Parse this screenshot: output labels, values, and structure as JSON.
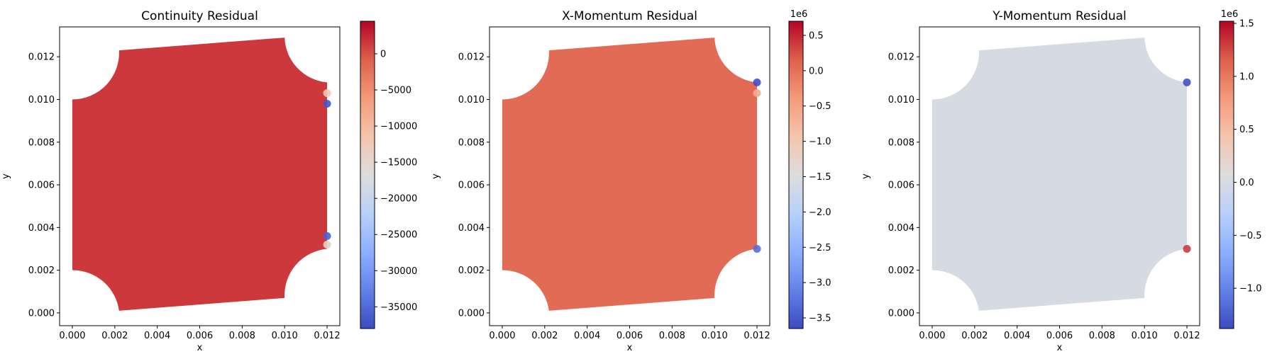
{
  "chart_data": [
    {
      "type": "scatter",
      "title": "Continuity Residual",
      "xlabel": "x",
      "ylabel": "y",
      "xlim": [
        -0.0006,
        0.0126
      ],
      "ylim": [
        -0.0006,
        0.0134
      ],
      "xticks": [
        0.0,
        0.002,
        0.004,
        0.006,
        0.008,
        0.01,
        0.012
      ],
      "xtick_labels": [
        "0.000",
        "0.002",
        "0.004",
        "0.006",
        "0.008",
        "0.010",
        "0.012"
      ],
      "yticks": [
        0.0,
        0.002,
        0.004,
        0.006,
        0.008,
        0.01,
        0.012
      ],
      "ytick_labels": [
        "0.000",
        "0.002",
        "0.004",
        "0.006",
        "0.008",
        "0.010",
        "0.012"
      ],
      "grid": false,
      "colormap": "coolwarm",
      "colorbar": {
        "range": [
          -38000,
          4500
        ],
        "offset_label": "",
        "ticks": [
          0,
          -5000,
          -10000,
          -15000,
          -20000,
          -25000,
          -30000,
          -35000
        ],
        "tick_labels": [
          "0",
          "−5000",
          "−10000",
          "−15000",
          "−20000",
          "−25000",
          "−30000",
          "−35000"
        ]
      },
      "background_value": 1500,
      "domain_shape": {
        "corners": [
          [
            0.0,
            0.01
          ],
          [
            0.0022,
            0.0123
          ],
          [
            0.01,
            0.0129
          ],
          [
            0.012,
            0.0108
          ],
          [
            0.012,
            0.003
          ],
          [
            0.01,
            0.0007
          ],
          [
            0.0022,
            0.0001
          ],
          [
            0.0,
            0.002
          ]
        ]
      },
      "edge_points": [
        {
          "x": 0.012,
          "y": 0.0098,
          "value": -37000
        },
        {
          "x": 0.012,
          "y": 0.0103,
          "value": -12000
        },
        {
          "x": 0.012,
          "y": 0.0036,
          "value": -36000
        },
        {
          "x": 0.012,
          "y": 0.0032,
          "value": -14000
        }
      ]
    },
    {
      "type": "scatter",
      "title": "X-Momentum Residual",
      "xlabel": "x",
      "ylabel": "y",
      "xlim": [
        -0.0006,
        0.0126
      ],
      "ylim": [
        -0.0006,
        0.0134
      ],
      "xticks": [
        0.0,
        0.002,
        0.004,
        0.006,
        0.008,
        0.01,
        0.012
      ],
      "xtick_labels": [
        "0.000",
        "0.002",
        "0.004",
        "0.006",
        "0.008",
        "0.010",
        "0.012"
      ],
      "yticks": [
        0.0,
        0.002,
        0.004,
        0.006,
        0.008,
        0.01,
        0.012
      ],
      "ytick_labels": [
        "0.000",
        "0.002",
        "0.004",
        "0.006",
        "0.008",
        "0.010",
        "0.012"
      ],
      "grid": false,
      "colormap": "coolwarm",
      "colorbar": {
        "range": [
          -3.65,
          0.7
        ],
        "offset_label": "1e6",
        "ticks": [
          0.5,
          0.0,
          -0.5,
          -1.0,
          -1.5,
          -2.0,
          -2.5,
          -3.0,
          -3.5
        ],
        "tick_labels": [
          "0.5",
          "0.0",
          "−0.5",
          "−1.0",
          "−1.5",
          "−2.0",
          "−2.5",
          "−3.0",
          "−3.5"
        ]
      },
      "background_value": 0.05,
      "domain_shape": {
        "corners": [
          [
            0.0,
            0.01
          ],
          [
            0.0022,
            0.0123
          ],
          [
            0.01,
            0.0129
          ],
          [
            0.012,
            0.0108
          ],
          [
            0.012,
            0.003
          ],
          [
            0.01,
            0.0007
          ],
          [
            0.0022,
            0.0001
          ],
          [
            0.0,
            0.002
          ]
        ]
      },
      "edge_points": [
        {
          "x": 0.012,
          "y": 0.0108,
          "value": -3.6
        },
        {
          "x": 0.012,
          "y": 0.003,
          "value": -3.3
        },
        {
          "x": 0.012,
          "y": 0.0103,
          "value": -0.6
        }
      ]
    },
    {
      "type": "scatter",
      "title": "Y-Momentum Residual",
      "xlabel": "x",
      "ylabel": "y",
      "xlim": [
        -0.0006,
        0.0126
      ],
      "ylim": [
        -0.0006,
        0.0134
      ],
      "xticks": [
        0.0,
        0.002,
        0.004,
        0.006,
        0.008,
        0.01,
        0.012
      ],
      "xtick_labels": [
        "0.000",
        "0.002",
        "0.004",
        "0.006",
        "0.008",
        "0.010",
        "0.012"
      ],
      "yticks": [
        0.0,
        0.002,
        0.004,
        0.006,
        0.008,
        0.01,
        0.012
      ],
      "ytick_labels": [
        "0.000",
        "0.002",
        "0.004",
        "0.006",
        "0.008",
        "0.010",
        "0.012"
      ],
      "grid": false,
      "colormap": "coolwarm",
      "colorbar": {
        "range": [
          -1.38,
          1.52
        ],
        "offset_label": "1e6",
        "ticks": [
          1.5,
          1.0,
          0.5,
          0.0,
          -0.5,
          -1.0
        ],
        "tick_labels": [
          "1.5",
          "1.0",
          "0.5",
          "0.0",
          "−0.5",
          "−1.0"
        ]
      },
      "background_value": 0.0,
      "domain_shape": {
        "corners": [
          [
            0.0,
            0.01
          ],
          [
            0.0022,
            0.0123
          ],
          [
            0.01,
            0.0129
          ],
          [
            0.012,
            0.0108
          ],
          [
            0.012,
            0.003
          ],
          [
            0.01,
            0.0007
          ],
          [
            0.0022,
            0.0001
          ],
          [
            0.0,
            0.002
          ]
        ]
      },
      "edge_points": [
        {
          "x": 0.012,
          "y": 0.0108,
          "value": -1.35
        },
        {
          "x": 0.012,
          "y": 0.003,
          "value": 1.3
        }
      ]
    }
  ]
}
